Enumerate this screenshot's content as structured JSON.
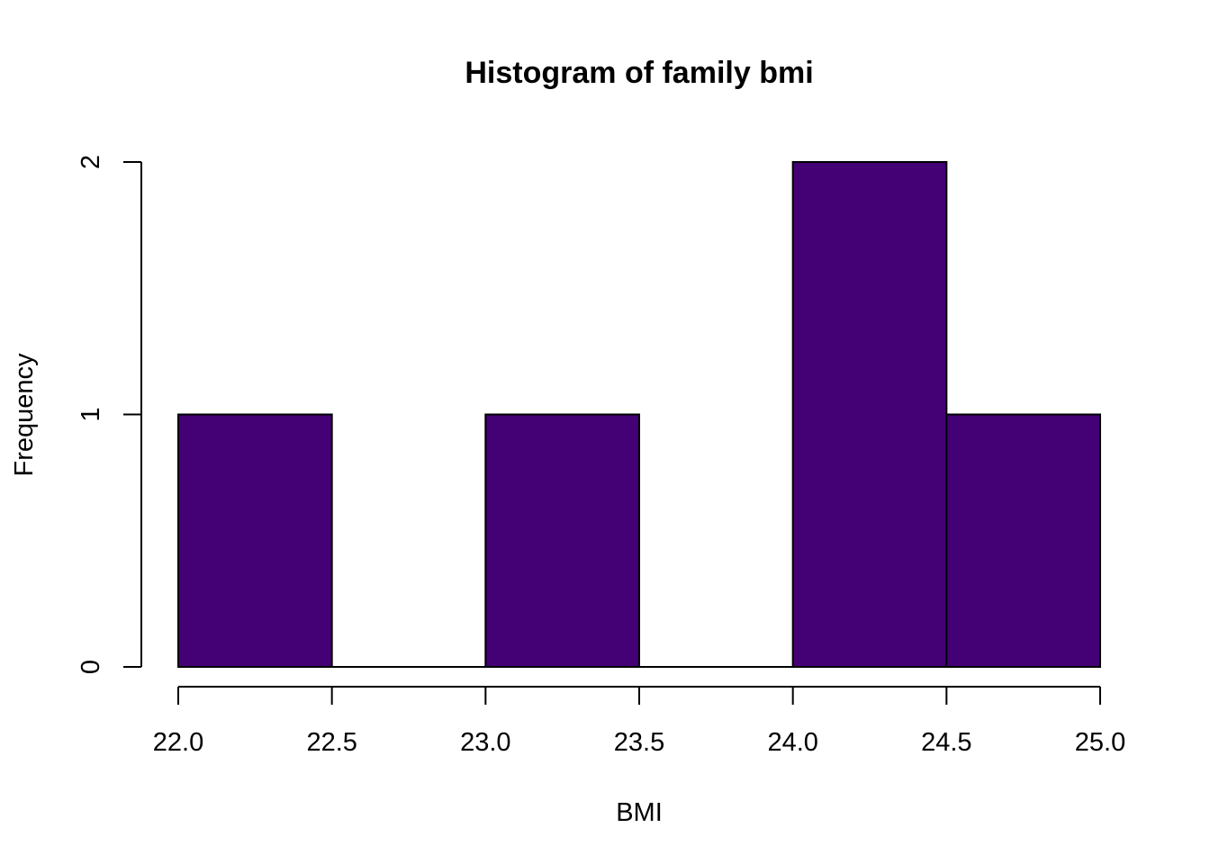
{
  "chart_data": {
    "type": "bar",
    "title": "Histogram of family bmi",
    "xlabel": "BMI",
    "ylabel": "Frequency",
    "bins": [
      {
        "from": 22.0,
        "to": 22.5,
        "count": 1
      },
      {
        "from": 22.5,
        "to": 23.0,
        "count": 0
      },
      {
        "from": 23.0,
        "to": 23.5,
        "count": 1
      },
      {
        "from": 23.5,
        "to": 24.0,
        "count": 0
      },
      {
        "from": 24.0,
        "to": 24.5,
        "count": 2
      },
      {
        "from": 24.5,
        "to": 25.0,
        "count": 1
      }
    ],
    "xlim": [
      22.0,
      25.0
    ],
    "ylim": [
      0,
      2
    ],
    "x_ticks": [
      "22.0",
      "22.5",
      "23.0",
      "23.5",
      "24.0",
      "24.5",
      "25.0"
    ],
    "y_ticks": [
      "0",
      "1",
      "2"
    ],
    "bar_color": "#440075",
    "grid": false,
    "legend": "none"
  }
}
